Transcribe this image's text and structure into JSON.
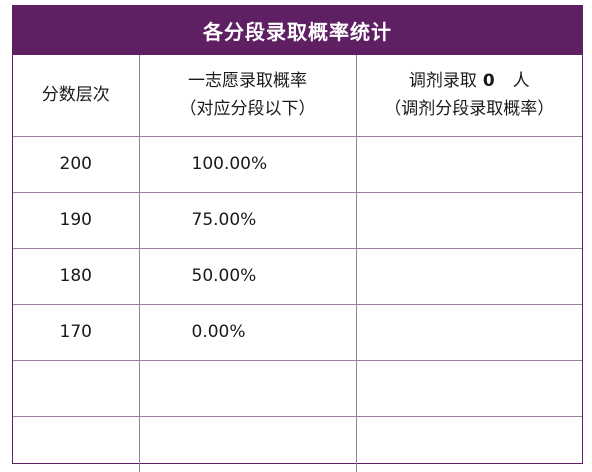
{
  "table": {
    "title": "各分段录取概率统计",
    "headers": {
      "col1": "分数层次",
      "col2_line1": "一志愿录取概率",
      "col2_line2": "（对应分段以下）",
      "col3_prefix": "调剂录取",
      "col3_count": "0",
      "col3_suffix": "人",
      "col3_line2": "（调剂分段录取概率）"
    },
    "rows": [
      {
        "score": "200",
        "first_choice_rate": "100.00%",
        "adjust_rate": ""
      },
      {
        "score": "190",
        "first_choice_rate": "75.00%",
        "adjust_rate": ""
      },
      {
        "score": "180",
        "first_choice_rate": "50.00%",
        "adjust_rate": ""
      },
      {
        "score": "170",
        "first_choice_rate": "0.00%",
        "adjust_rate": ""
      },
      {
        "score": "",
        "first_choice_rate": "",
        "adjust_rate": ""
      },
      {
        "score": "",
        "first_choice_rate": "",
        "adjust_rate": ""
      }
    ]
  }
}
